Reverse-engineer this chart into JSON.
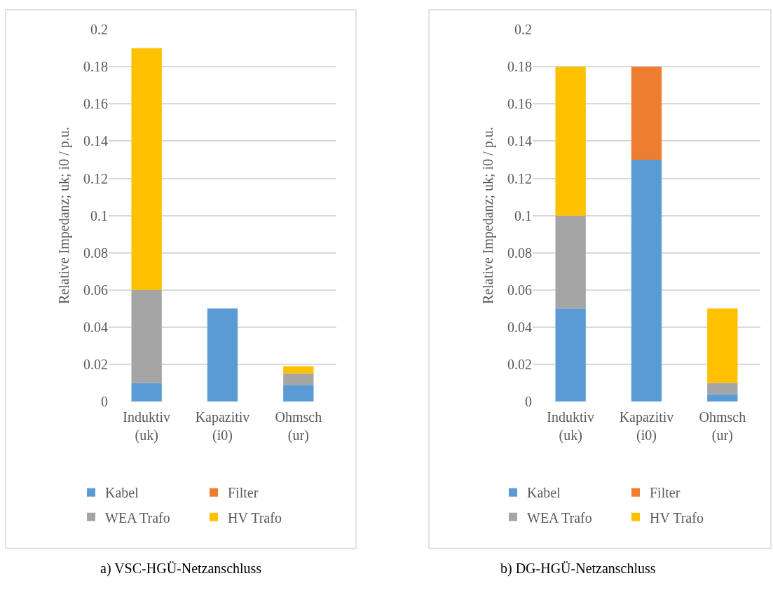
{
  "chart_data": [
    {
      "type": "bar",
      "stacked": true,
      "categories": [
        "Induktiv (uk)",
        "Kapazitiv (i0)",
        "Ohmsch (ur)"
      ],
      "ylabel": "Relative Impedanz; uk; i0 / p.u.",
      "ylim": [
        0,
        0.2
      ],
      "yticks": [
        0,
        0.02,
        0.04,
        0.06,
        0.08,
        0.1,
        0.12,
        0.14,
        0.16,
        0.18,
        0.2
      ],
      "grid": "y",
      "legend": "bottom",
      "annotations": [
        "a) VSC-HGÜ-Netzanschluss"
      ],
      "series": [
        {
          "name": "Kabel",
          "color": "#5b9bd5",
          "values": [
            0.01,
            0.05,
            0.009
          ]
        },
        {
          "name": "Filter",
          "color": "#ed7d31",
          "values": [
            null,
            null,
            null
          ]
        },
        {
          "name": "WEA Trafo",
          "color": "#a5a5a5",
          "values": [
            0.05,
            null,
            0.006
          ]
        },
        {
          "name": "HV Trafo",
          "color": "#ffc000",
          "values": [
            0.13,
            null,
            0.004
          ]
        }
      ]
    },
    {
      "type": "bar",
      "stacked": true,
      "categories": [
        "Induktiv (uk)",
        "Kapazitiv (i0)",
        "Ohmsch (ur)"
      ],
      "ylabel": "Relative Impedanz; uk; i0 / p.u.",
      "ylim": [
        0,
        0.2
      ],
      "yticks": [
        0,
        0.02,
        0.04,
        0.06,
        0.08,
        0.1,
        0.12,
        0.14,
        0.16,
        0.18,
        0.2
      ],
      "grid": "y",
      "legend": "bottom",
      "annotations": [
        "b) DG-HGÜ-Netzanschluss"
      ],
      "series": [
        {
          "name": "Kabel",
          "color": "#5b9bd5",
          "values": [
            0.05,
            0.13,
            0.004
          ]
        },
        {
          "name": "Filter",
          "color": "#ed7d31",
          "values": [
            null,
            0.05,
            null
          ]
        },
        {
          "name": "WEA Trafo",
          "color": "#a5a5a5",
          "values": [
            0.05,
            null,
            0.006
          ]
        },
        {
          "name": "HV Trafo",
          "color": "#ffc000",
          "values": [
            0.08,
            null,
            0.04
          ]
        }
      ]
    }
  ]
}
